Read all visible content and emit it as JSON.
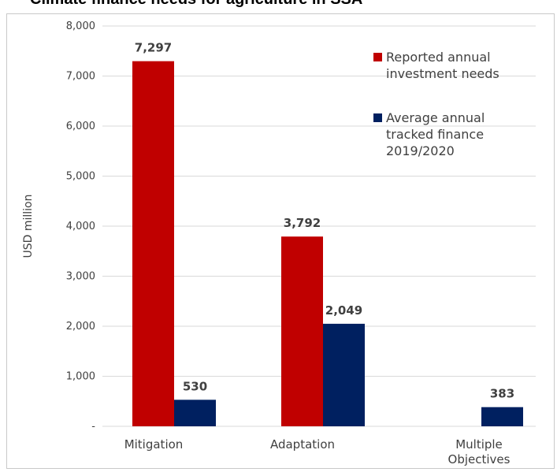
{
  "title": "Climate finance needs for agriculture in SSA",
  "chart_data": {
    "type": "bar",
    "categories": [
      "Mitigation",
      "Adaptation",
      "Multiple Objectives"
    ],
    "series": [
      {
        "name": "Reported annual investment needs",
        "color": "#c00000",
        "values": [
          7297,
          3792,
          null
        ],
        "labels": [
          "7,297",
          "3,792",
          null
        ]
      },
      {
        "name": "Average annual tracked finance 2019/2020",
        "color": "#002060",
        "values": [
          530,
          2049,
          383
        ],
        "labels": [
          "530",
          "2,049",
          "383"
        ]
      }
    ],
    "ylabel": "USD million",
    "ylim": [
      0,
      8000
    ],
    "yticks": [
      0,
      1000,
      2000,
      3000,
      4000,
      5000,
      6000,
      7000,
      8000
    ],
    "ytick_labels": [
      "-",
      "1,000",
      "2,000",
      "3,000",
      "4,000",
      "5,000",
      "6,000",
      "7,000",
      "8,000"
    ],
    "grid": true,
    "legend_position": "top-right"
  }
}
